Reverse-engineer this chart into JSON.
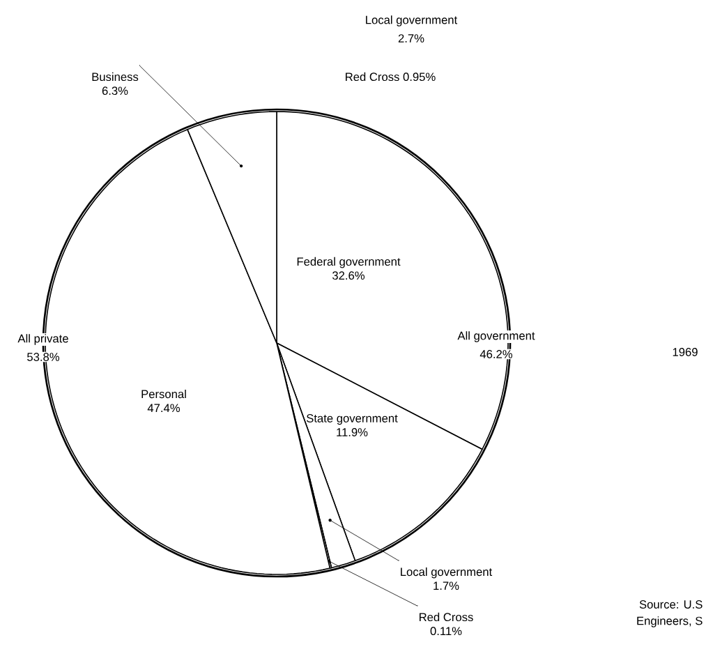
{
  "chart_data": {
    "type": "pie",
    "title": "1969",
    "categories": [
      "Federal government",
      "State government",
      "Local government",
      "Red Cross",
      "Personal",
      "Business"
    ],
    "values": [
      32.6,
      11.9,
      1.7,
      0.11,
      47.4,
      6.3
    ],
    "value_labels": [
      "32.6%",
      "11.9%",
      "1.7%",
      "0.11%",
      "47.4%",
      "6.3%"
    ],
    "colors": [
      "#ffffff",
      "#ffffff",
      "#ffffff",
      "#ffffff",
      "#ffffff",
      "#ffffff"
    ],
    "annotations": [
      "All private",
      "53.8%",
      "All government",
      "46.2%",
      "Local government",
      "2.7%",
      "Red Cross  0.95%",
      "Source: U.S",
      "Engineers, S"
    ]
  }
}
